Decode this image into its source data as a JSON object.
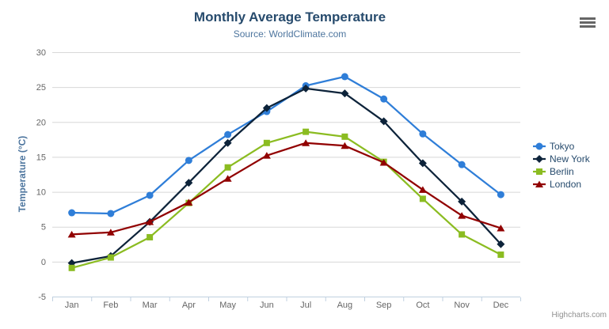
{
  "credit": {
    "label": "Highcharts.com"
  },
  "export_menu": {
    "icon": "hamburger-icon"
  },
  "chart_data": {
    "type": "line",
    "title": "Monthly Average Temperature",
    "subtitle": "Source: WorldClimate.com",
    "categories": [
      "Jan",
      "Feb",
      "Mar",
      "Apr",
      "May",
      "Jun",
      "Jul",
      "Aug",
      "Sep",
      "Oct",
      "Nov",
      "Dec"
    ],
    "xlabel": "",
    "ylabel": "Temperature (°C)",
    "ylim": [
      -5,
      30
    ],
    "ytick_step": 5,
    "ytick_labels": [
      "-5",
      "0",
      "5",
      "10",
      "15",
      "20",
      "25",
      "30"
    ],
    "grid": true,
    "legend_position": "right",
    "series": [
      {
        "name": "Tokyo",
        "color": "#2f7ed8",
        "marker": "circle",
        "values": [
          7.0,
          6.9,
          9.5,
          14.5,
          18.2,
          21.5,
          25.2,
          26.5,
          23.3,
          18.3,
          13.9,
          9.6
        ]
      },
      {
        "name": "New York",
        "color": "#0d233a",
        "marker": "diamond",
        "values": [
          -0.2,
          0.8,
          5.7,
          11.3,
          17.0,
          22.0,
          24.8,
          24.1,
          20.1,
          14.1,
          8.6,
          2.5
        ]
      },
      {
        "name": "Berlin",
        "color": "#8bbc21",
        "marker": "square",
        "values": [
          -0.9,
          0.6,
          3.5,
          8.4,
          13.5,
          17.0,
          18.6,
          17.9,
          14.3,
          9.0,
          3.9,
          1.0
        ]
      },
      {
        "name": "London",
        "color": "#910000",
        "marker": "triangle",
        "values": [
          3.9,
          4.2,
          5.7,
          8.5,
          11.9,
          15.2,
          17.0,
          16.6,
          14.2,
          10.3,
          6.6,
          4.8
        ]
      }
    ],
    "style_colors": {
      "title": "#274b6d",
      "subtitle": "#4d759e",
      "axis_label": "#666666",
      "axis_title": "#4d759e",
      "grid_line": "#d8d8d8",
      "axis_line": "#c0d0e0",
      "legend_text": "#274b6d"
    }
  }
}
